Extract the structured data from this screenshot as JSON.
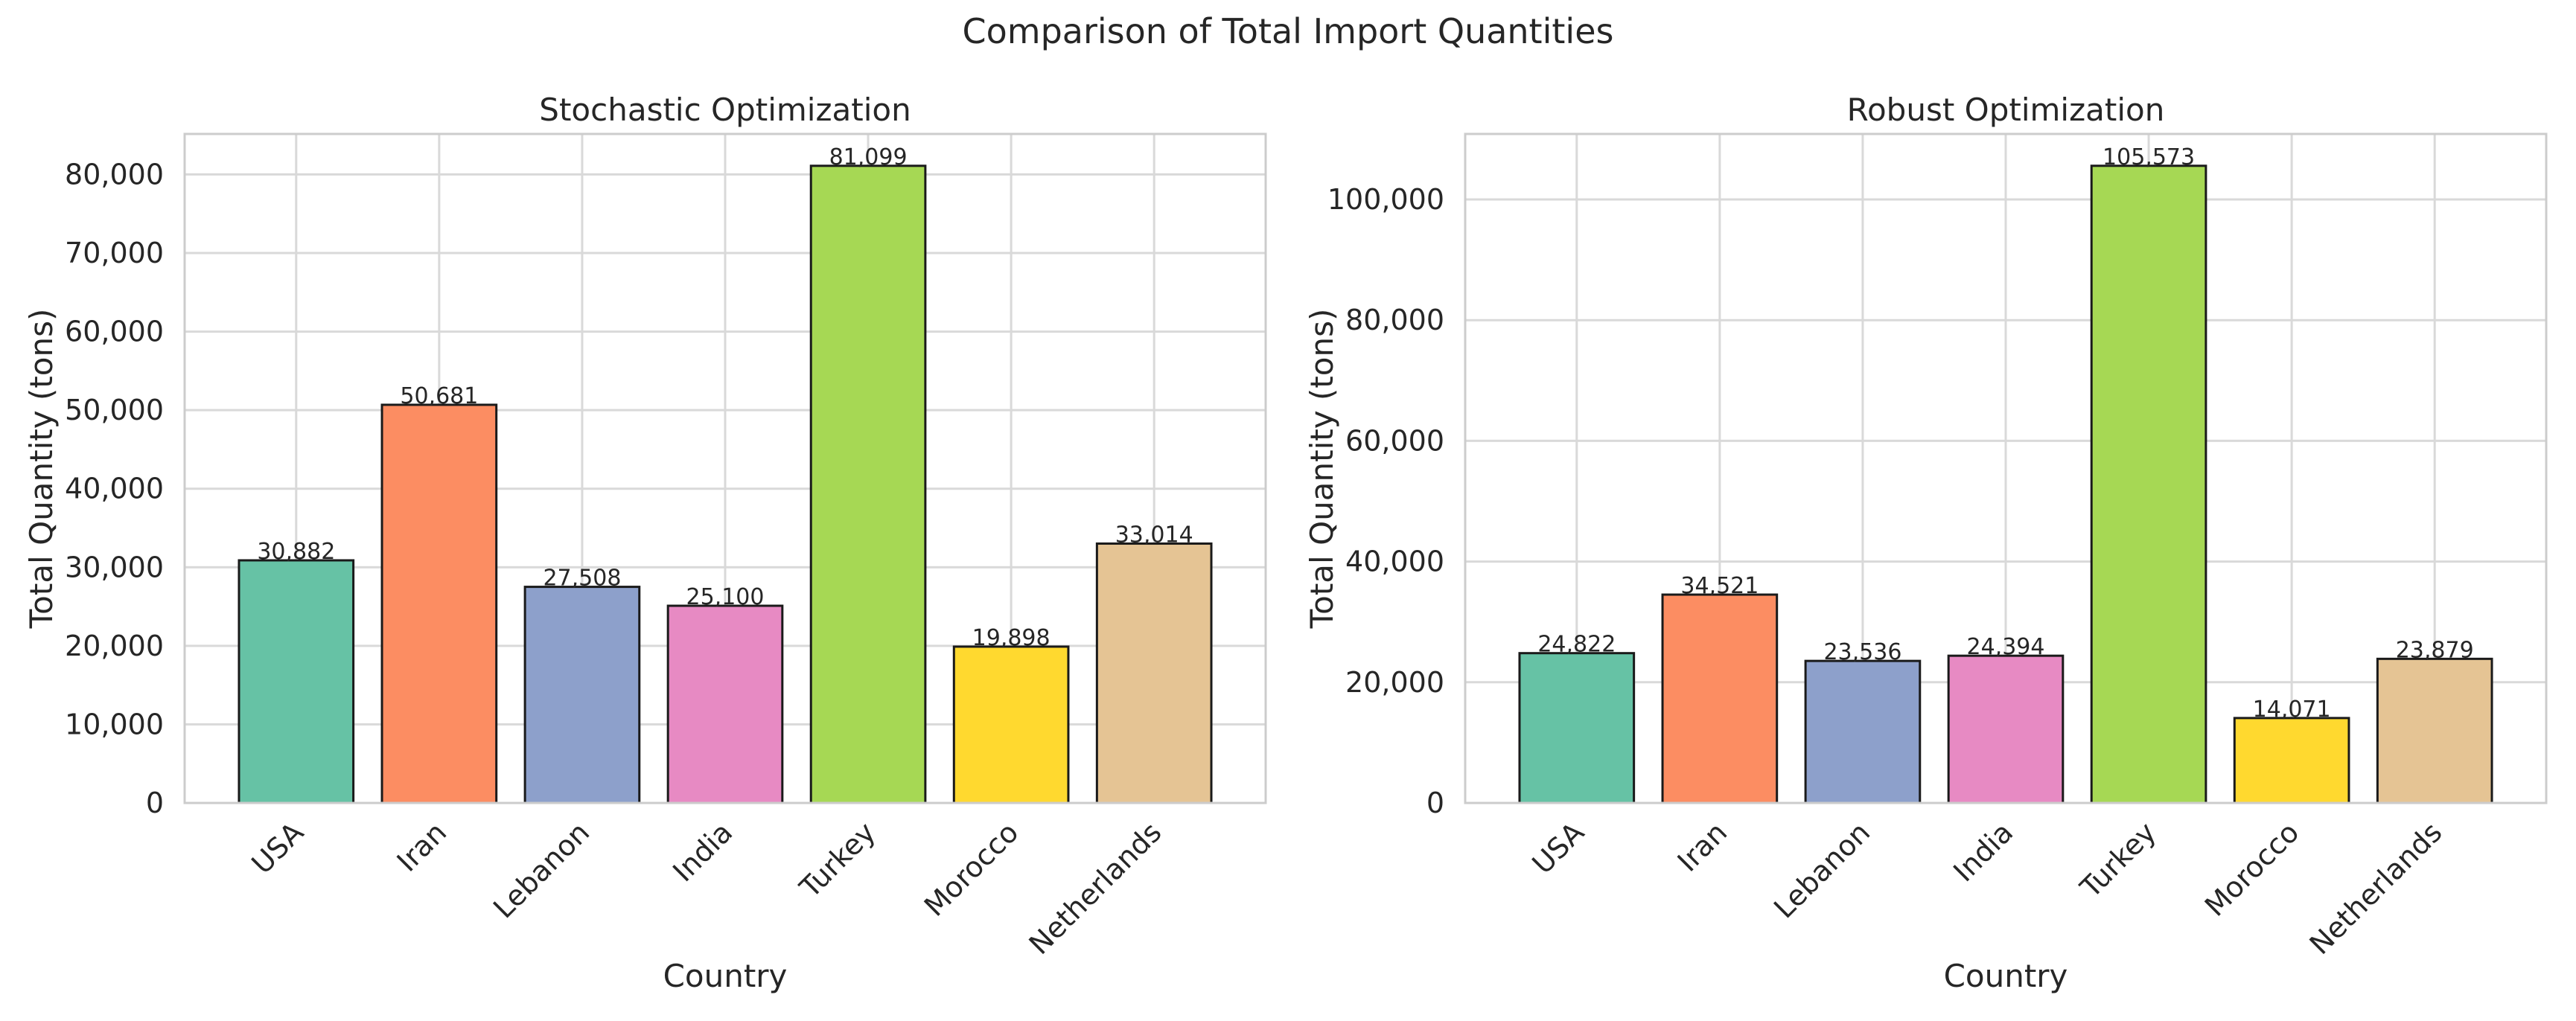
{
  "figure_title": "Comparison of Total Import Quantities",
  "colors": [
    "#66c2a5",
    "#fc8d62",
    "#8da0cb",
    "#e78ac3",
    "#a6d854",
    "#ffd92f",
    "#e5c494"
  ],
  "chart_data": [
    {
      "type": "bar",
      "title": "Stochastic Optimization",
      "xlabel": "Country",
      "ylabel": "Total Quantity (tons)",
      "categories": [
        "USA",
        "Iran",
        "Lebanon",
        "India",
        "Turkey",
        "Morocco",
        "Netherlands"
      ],
      "values": [
        30882,
        50681,
        27508,
        25100,
        81099,
        19898,
        33014
      ],
      "value_labels": [
        "30,882",
        "50,681",
        "27,508",
        "25,100",
        "81,099",
        "19,898",
        "33,014"
      ],
      "ylim": [
        0,
        85155
      ],
      "yticks": [
        0,
        10000,
        20000,
        30000,
        40000,
        50000,
        60000,
        70000,
        80000
      ],
      "ytick_labels": [
        "0",
        "10,000",
        "20,000",
        "30,000",
        "40,000",
        "50,000",
        "60,000",
        "70,000",
        "80,000"
      ],
      "grid": true
    },
    {
      "type": "bar",
      "title": "Robust Optimization",
      "xlabel": "Country",
      "ylabel": "Total Quantity (tons)",
      "categories": [
        "USA",
        "Iran",
        "Lebanon",
        "India",
        "Turkey",
        "Morocco",
        "Netherlands"
      ],
      "values": [
        24822,
        34521,
        23536,
        24394,
        105573,
        14071,
        23879
      ],
      "value_labels": [
        "24,822",
        "34,521",
        "23,536",
        "24,394",
        "105,573",
        "14,071",
        "23,879"
      ],
      "ylim": [
        0,
        110850
      ],
      "yticks": [
        0,
        20000,
        40000,
        60000,
        80000,
        100000
      ],
      "ytick_labels": [
        "0",
        "20,000",
        "40,000",
        "60,000",
        "80,000",
        "100,000"
      ],
      "grid": true
    }
  ]
}
